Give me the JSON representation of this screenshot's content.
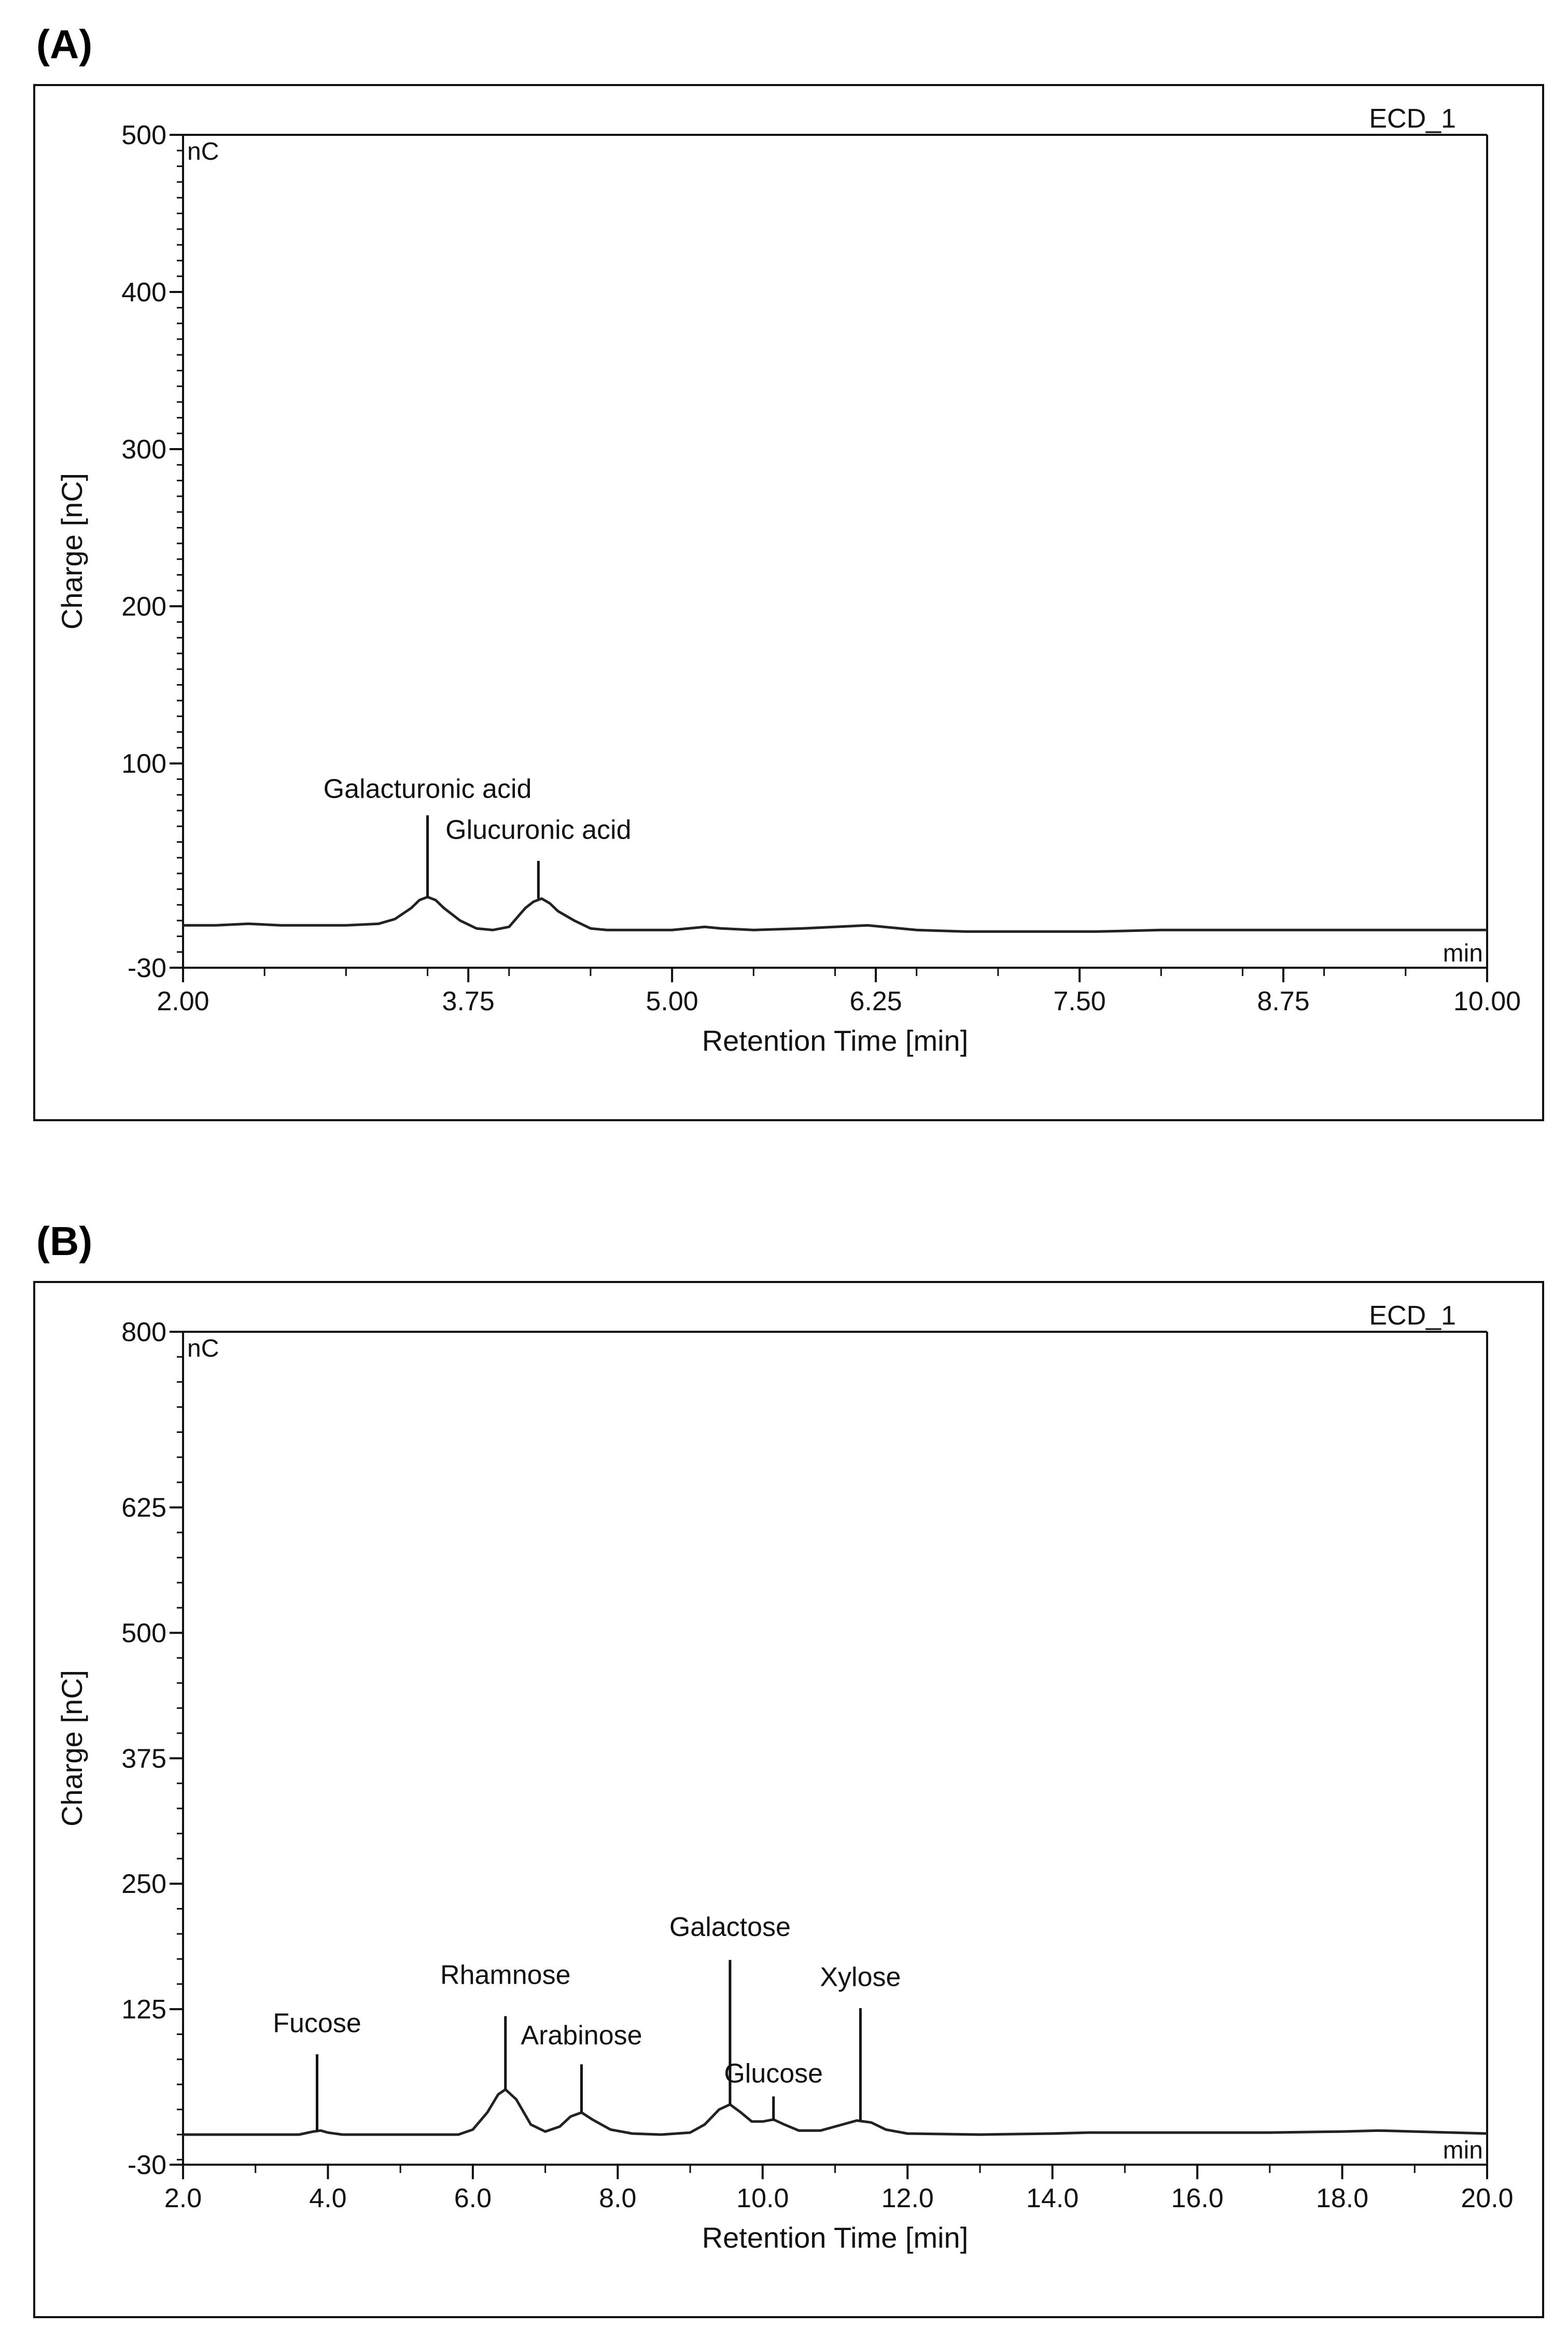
{
  "chart_data": [
    {
      "panel_label": "(A)",
      "type": "line",
      "trace_name": "ECD_1",
      "unit_label": "nC",
      "axis_end_label": "min",
      "xlabel": "Retention Time [min]",
      "ylabel": "Charge [nC]",
      "xlim": [
        2.0,
        10.0
      ],
      "ylim": [
        -30,
        500
      ],
      "x_ticks": [
        "2.00",
        "3.75",
        "5.00",
        "6.25",
        "7.50",
        "8.75",
        "10.00"
      ],
      "x_tick_values": [
        2.0,
        3.75,
        5.0,
        6.25,
        7.5,
        8.75,
        10.0
      ],
      "x_minor_ticks": [
        2.5,
        3.0,
        3.5,
        4.0,
        4.5,
        5.5,
        6.0,
        6.5,
        7.0,
        8.0,
        8.5,
        9.0,
        9.5
      ],
      "y_ticks": [
        "500",
        "400",
        "300",
        "200",
        "100",
        "-30"
      ],
      "y_tick_values": [
        500,
        400,
        300,
        200,
        100,
        -30
      ],
      "y_minor_step": 10,
      "series": [
        {
          "name": "ECD_1",
          "x": [
            2.0,
            2.2,
            2.4,
            2.6,
            2.8,
            3.0,
            3.2,
            3.3,
            3.4,
            3.45,
            3.5,
            3.55,
            3.6,
            3.7,
            3.8,
            3.9,
            4.0,
            4.05,
            4.1,
            4.15,
            4.2,
            4.25,
            4.3,
            4.4,
            4.5,
            4.6,
            4.8,
            5.0,
            5.1,
            5.2,
            5.3,
            5.5,
            5.8,
            6.0,
            6.2,
            6.3,
            6.5,
            6.8,
            7.2,
            7.6,
            8.0,
            8.5,
            9.0,
            9.5,
            10.0
          ],
          "y": [
            -3,
            -3,
            -2,
            -3,
            -3,
            -3,
            -2,
            1,
            8,
            13,
            15,
            13,
            8,
            0,
            -5,
            -6,
            -4,
            2,
            8,
            12,
            14,
            11,
            6,
            0,
            -5,
            -6,
            -6,
            -6,
            -5,
            -4,
            -5,
            -6,
            -5,
            -4,
            -3,
            -4,
            -6,
            -7,
            -7,
            -7,
            -6,
            -6,
            -6,
            -6,
            -6
          ]
        }
      ],
      "annotations": [
        {
          "text": "Galacturonic acid",
          "x": 3.5,
          "peak_y": 15,
          "line_top": 67,
          "label_y": 78
        },
        {
          "text": "Glucuronic acid",
          "x": 4.18,
          "peak_y": 14,
          "line_top": 38,
          "label_y": 52
        }
      ]
    },
    {
      "panel_label": "(B)",
      "type": "line",
      "trace_name": "ECD_1",
      "unit_label": "nC",
      "axis_end_label": "min",
      "xlabel": "Retention Time [min]",
      "ylabel": "Charge [nC]",
      "xlim": [
        2.0,
        20.0
      ],
      "ylim": [
        -30,
        800
      ],
      "x_ticks": [
        "2.0",
        "4.0",
        "6.0",
        "8.0",
        "10.0",
        "12.0",
        "14.0",
        "16.0",
        "18.0",
        "20.0"
      ],
      "x_tick_values": [
        2.0,
        4.0,
        6.0,
        8.0,
        10.0,
        12.0,
        14.0,
        16.0,
        18.0,
        20.0
      ],
      "x_minor_ticks": [
        3.0,
        5.0,
        7.0,
        9.0,
        11.0,
        13.0,
        15.0,
        17.0,
        19.0
      ],
      "y_ticks": [
        "800",
        "625",
        "500",
        "375",
        "250",
        "125",
        "-30"
      ],
      "y_tick_values": [
        800,
        625,
        500,
        375,
        250,
        125,
        -30
      ],
      "y_minor_step": 25,
      "series": [
        {
          "name": "ECD_1",
          "x": [
            2.0,
            3.0,
            3.6,
            3.8,
            3.9,
            4.0,
            4.2,
            5.0,
            5.8,
            6.0,
            6.2,
            6.35,
            6.45,
            6.6,
            6.8,
            7.0,
            7.2,
            7.35,
            7.5,
            7.65,
            7.9,
            8.2,
            8.6,
            9.0,
            9.2,
            9.4,
            9.55,
            9.7,
            9.85,
            10.0,
            10.15,
            10.3,
            10.5,
            10.8,
            11.1,
            11.3,
            11.5,
            11.7,
            12.0,
            13.0,
            14.0,
            14.5,
            15.0,
            16.0,
            17.0,
            18.0,
            18.5,
            19.0,
            20.0
          ],
          "y": [
            0,
            0,
            0,
            3,
            4,
            2,
            0,
            0,
            0,
            5,
            22,
            40,
            45,
            35,
            10,
            3,
            8,
            18,
            22,
            15,
            5,
            1,
            0,
            2,
            10,
            25,
            30,
            22,
            13,
            13,
            15,
            10,
            4,
            4,
            10,
            14,
            12,
            5,
            1,
            0,
            1,
            2,
            2,
            2,
            2,
            3,
            4,
            3,
            1
          ]
        }
      ],
      "annotations": [
        {
          "text": "Fucose",
          "x": 3.85,
          "peak_y": 4,
          "line_top": 80,
          "label_y": 102
        },
        {
          "text": "Rhamnose",
          "x": 6.45,
          "peak_y": 45,
          "line_top": 118,
          "label_y": 150
        },
        {
          "text": "Arabinose",
          "x": 7.5,
          "peak_y": 22,
          "line_top": 70,
          "label_y": 90
        },
        {
          "text": "Galactose",
          "x": 9.55,
          "peak_y": 30,
          "line_top": 174,
          "label_y": 198
        },
        {
          "text": "Glucose",
          "x": 10.15,
          "peak_y": 15,
          "line_top": 38,
          "label_y": 52
        },
        {
          "text": "Xylose",
          "x": 11.35,
          "peak_y": 14,
          "line_top": 126,
          "label_y": 148
        }
      ]
    }
  ]
}
